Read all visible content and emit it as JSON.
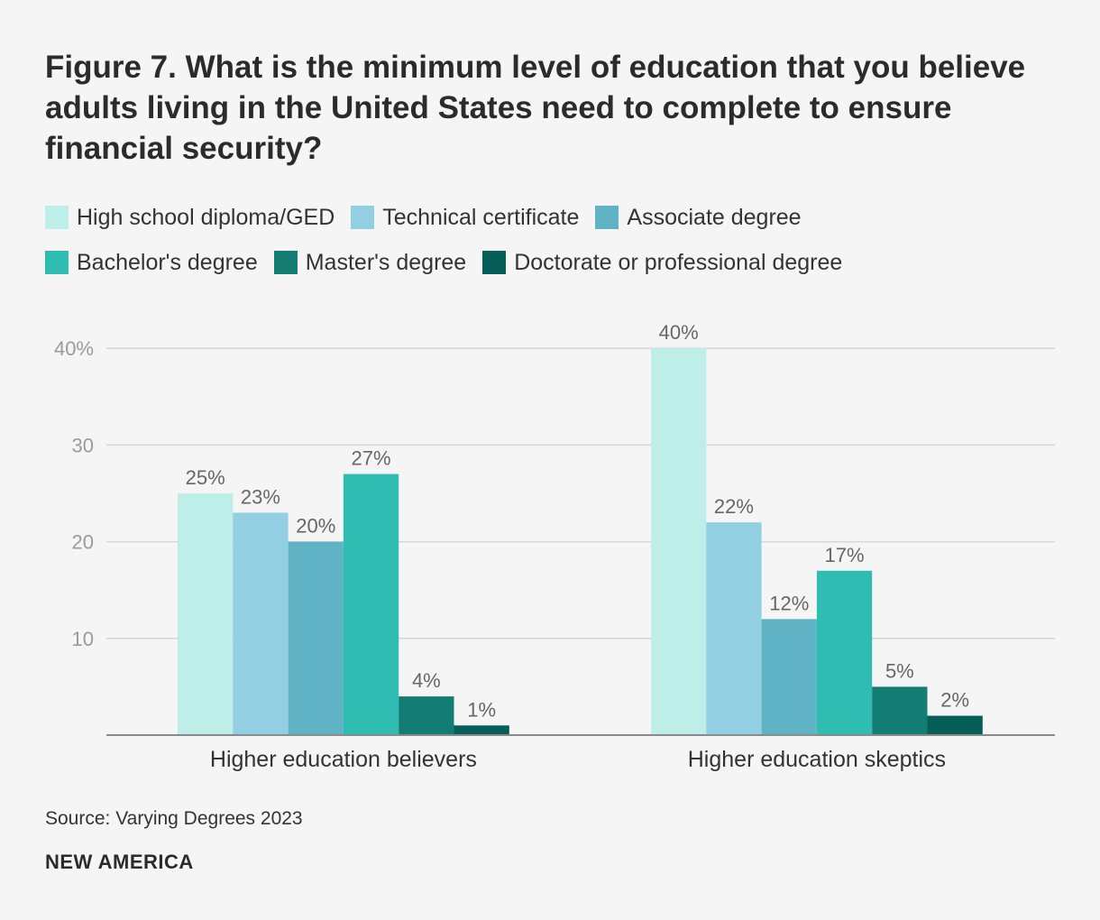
{
  "title": "Figure 7. What is the minimum level of education that you believe adults living in the United States need to complete to ensure financial security?",
  "source": "Source: Varying Degrees 2023",
  "brand": "NEW AMERICA",
  "chart_data": {
    "type": "bar",
    "categories": [
      "Higher education believers",
      "Higher education skeptics"
    ],
    "series": [
      {
        "name": "High school diploma/GED",
        "color": "#bdeee8",
        "values": [
          25,
          40
        ],
        "labels": [
          "25%",
          "40%"
        ]
      },
      {
        "name": "Technical certificate",
        "color": "#93cfe3",
        "values": [
          23,
          22
        ],
        "labels": [
          "23%",
          "22%"
        ]
      },
      {
        "name": "Associate degree",
        "color": "#5fb3c4",
        "values": [
          20,
          12
        ],
        "labels": [
          "20%",
          "12%"
        ]
      },
      {
        "name": "Bachelor's degree",
        "color": "#2fbcb2",
        "values": [
          27,
          17
        ],
        "labels": [
          "27%",
          "17%"
        ]
      },
      {
        "name": "Master's degree",
        "color": "#137d74",
        "values": [
          4,
          5
        ],
        "labels": [
          "4%",
          "5%"
        ]
      },
      {
        "name": "Doctorate or professional degree",
        "color": "#055e58",
        "values": [
          1,
          2
        ],
        "labels": [
          "1%",
          "2%"
        ]
      }
    ],
    "yticks": [
      10,
      20,
      30,
      40
    ],
    "ytick_labels": [
      "10",
      "20",
      "30",
      "40%"
    ],
    "ylim": [
      0,
      40
    ],
    "grid": true,
    "legend": "top"
  }
}
